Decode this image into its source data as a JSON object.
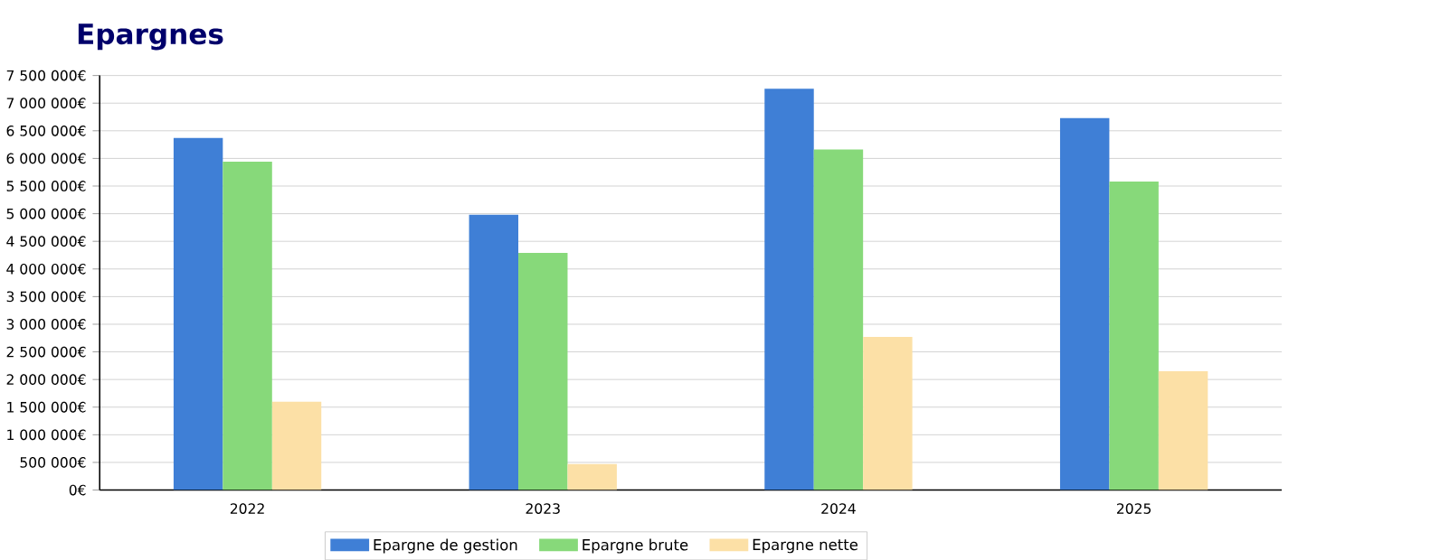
{
  "chart_data": {
    "type": "bar",
    "title": "Epargnes",
    "categories": [
      "2022",
      "2023",
      "2024",
      "2025"
    ],
    "series": [
      {
        "name": "Epargne de gestion",
        "color": "#3f7fd6",
        "values": [
          6370000,
          4980000,
          7260000,
          6730000
        ]
      },
      {
        "name": "Epargne brute",
        "color": "#87d97a",
        "values": [
          5940000,
          4290000,
          6160000,
          5580000
        ]
      },
      {
        "name": "Epargne nette",
        "color": "#fce0a6",
        "values": [
          1600000,
          470000,
          2770000,
          2150000
        ]
      }
    ],
    "ylim": [
      0,
      7500000
    ],
    "yticks": [
      {
        "value": 0,
        "label": "0€"
      },
      {
        "value": 500000,
        "label": "500 000€"
      },
      {
        "value": 1000000,
        "label": "1 000 000€"
      },
      {
        "value": 1500000,
        "label": "1 500 000€"
      },
      {
        "value": 2000000,
        "label": "2 000 000€"
      },
      {
        "value": 2500000,
        "label": "2 500 000€"
      },
      {
        "value": 3000000,
        "label": "3 000 000€"
      },
      {
        "value": 3500000,
        "label": "3 500 000€"
      },
      {
        "value": 4000000,
        "label": "4 000 000€"
      },
      {
        "value": 4500000,
        "label": "4 500 000€"
      },
      {
        "value": 5000000,
        "label": "5 000 000€"
      },
      {
        "value": 5500000,
        "label": "5 500 000€"
      },
      {
        "value": 6000000,
        "label": "6 000 000€"
      },
      {
        "value": 6500000,
        "label": "6 500 000€"
      },
      {
        "value": 7000000,
        "label": "7 000 000€"
      },
      {
        "value": 7500000,
        "label": "7 500 000€"
      }
    ],
    "grid": "y",
    "legend": "bottom"
  }
}
